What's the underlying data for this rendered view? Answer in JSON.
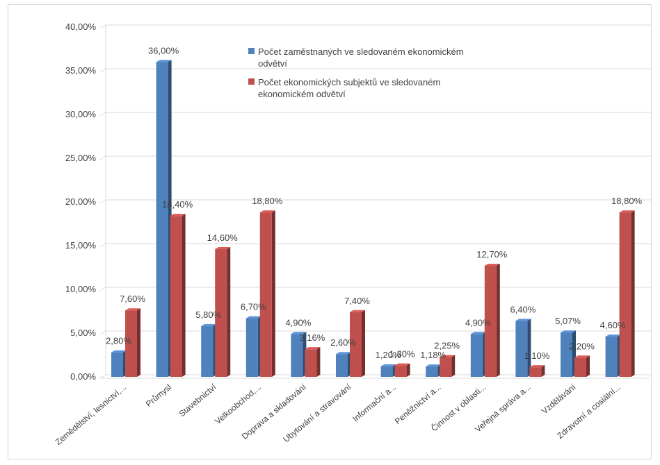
{
  "chart_data": {
    "type": "bar",
    "title": "",
    "xlabel": "",
    "ylabel": "",
    "ylim": [
      0,
      40
    ],
    "y_tick_step": 5,
    "y_tick_labels": [
      "0,00%",
      "5,00%",
      "10,00%",
      "15,00%",
      "20,00%",
      "25,00%",
      "30,00%",
      "35,00%",
      "40,00%"
    ],
    "grid": true,
    "legend_position": "top-right",
    "categories": [
      "Zemědělství, lesnictví,...",
      "Průmysl",
      "Stavebnictví",
      "Velkoobchod,...",
      "Doprava a skladování",
      "Ubytování a stravování",
      "Informační a...",
      "Peněžnictví a...",
      "Činnost v oblasti...",
      "Veřejná správa a...",
      "Vzdělávání",
      "Zdravotní a cosiální..."
    ],
    "series": [
      {
        "name": "Počet zaměstnaných ve sledovaném ekonomickém odvětví",
        "name_lines": [
          "Počet zaměstnaných ve sledovaném ekonomickém",
          "odvětví"
        ],
        "color": "#4f81bd",
        "values": [
          2.8,
          36.0,
          5.8,
          6.7,
          4.9,
          2.6,
          1.2,
          1.18,
          4.9,
          6.4,
          5.07,
          4.6
        ],
        "labels": [
          "2,80%",
          "36,00%",
          "5,80%",
          "6,70%",
          "4,90%",
          "2,60%",
          "1,20%",
          "1,18%",
          "4,90%",
          "6,40%",
          "5,07%",
          "4,60%"
        ]
      },
      {
        "name": "Počet ekonomických subjektů ve sledovaném ekonomickém odvětví",
        "name_lines": [
          "Počet ekonomických subjektů ve sledovaném",
          "ekonomickém odvětví"
        ],
        "color": "#c0504d",
        "values": [
          7.6,
          18.4,
          14.6,
          18.8,
          3.16,
          7.4,
          1.3,
          2.25,
          12.7,
          1.1,
          2.2,
          18.8
        ],
        "labels": [
          "7,60%",
          "18,40%",
          "14,60%",
          "18,80%",
          "3,16%",
          "7,40%",
          "1,30%",
          "2,25%",
          "12,70%",
          "1,10%",
          "2,20%",
          "18,80%"
        ]
      }
    ]
  }
}
